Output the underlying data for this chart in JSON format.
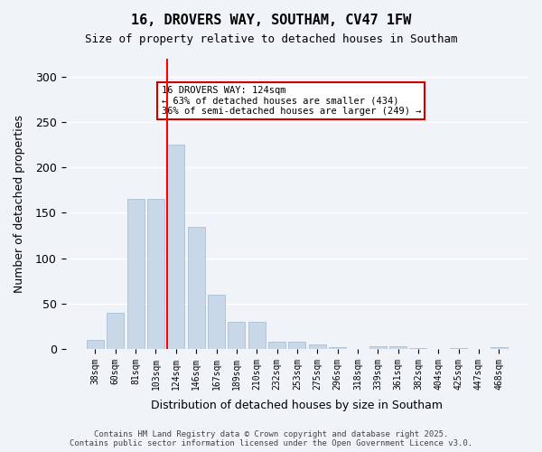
{
  "title1": "16, DROVERS WAY, SOUTHAM, CV47 1FW",
  "title2": "Size of property relative to detached houses in Southam",
  "xlabel": "Distribution of detached houses by size in Southam",
  "ylabel": "Number of detached properties",
  "categories": [
    "38sqm",
    "60sqm",
    "81sqm",
    "103sqm",
    "124sqm",
    "146sqm",
    "167sqm",
    "189sqm",
    "210sqm",
    "232sqm",
    "253sqm",
    "275sqm",
    "296sqm",
    "318sqm",
    "339sqm",
    "361sqm",
    "382sqm",
    "404sqm",
    "425sqm",
    "447sqm",
    "468sqm"
  ],
  "values": [
    10,
    40,
    165,
    165,
    225,
    135,
    60,
    30,
    30,
    8,
    8,
    5,
    2,
    0,
    3,
    3,
    1,
    0,
    1,
    0,
    2
  ],
  "bar_color": "#c8d8e8",
  "bar_edge_color": "#a0b8cc",
  "red_line_index": 4,
  "red_line_x": 124,
  "annotation_text": "16 DROVERS WAY: 124sqm\n← 63% of detached houses are smaller (434)\n36% of semi-detached houses are larger (249) →",
  "annotation_box_color": "#ffffff",
  "annotation_box_edge": "#cc0000",
  "ylim": [
    0,
    320
  ],
  "yticks": [
    0,
    50,
    100,
    150,
    200,
    250,
    300
  ],
  "background_color": "#f0f4f8",
  "grid_color": "#ffffff",
  "footer": "Contains HM Land Registry data © Crown copyright and database right 2025.\nContains public sector information licensed under the Open Government Licence v3.0."
}
